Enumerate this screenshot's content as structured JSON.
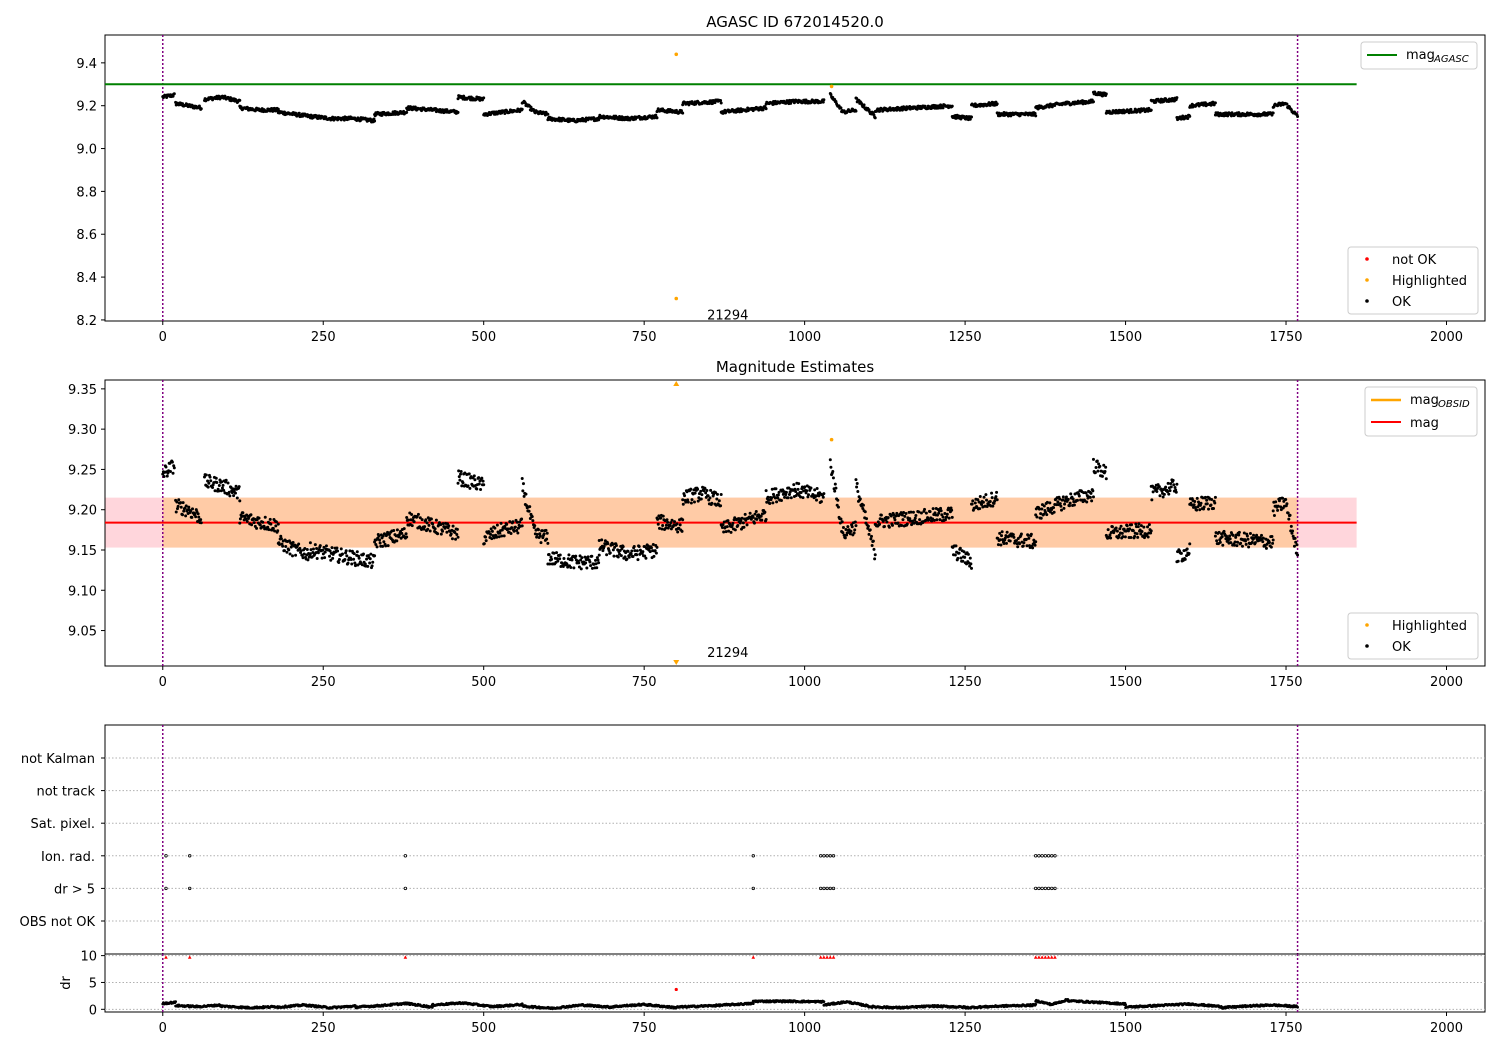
{
  "chart_data": [
    {
      "type": "scatter",
      "title": "AGASC ID 672014520.0",
      "xlabel": "",
      "ylabel": "",
      "xlim": [
        -90,
        2060
      ],
      "ylim": [
        8.195,
        9.53
      ],
      "xticks": [
        0,
        250,
        500,
        750,
        1000,
        1250,
        1500,
        1750,
        2000
      ],
      "yticks": [
        8.2,
        8.4,
        8.6,
        8.8,
        9.0,
        9.2,
        9.4
      ],
      "ytick_labels": [
        "8.2",
        "8.4",
        "8.6",
        "8.8",
        "9.0",
        "9.2",
        "9.4"
      ],
      "vlines": [
        0,
        1768
      ],
      "hline": {
        "name": "mag",
        "subscript": "AGASC",
        "value": 9.3,
        "x_range": [
          -90,
          1860
        ],
        "color": "#008000"
      },
      "legend_top": {
        "placement": "top-right",
        "entries": [
          {
            "label": "mag",
            "subscript": "AGASC",
            "color": "#008000"
          }
        ]
      },
      "legend_bottom": {
        "placement": "lower-right",
        "entries": [
          {
            "label": "not OK",
            "color": "#ff0000"
          },
          {
            "label": "Highlighted",
            "color": "#ffa500"
          },
          {
            "label": "OK",
            "color": "#000000"
          }
        ]
      },
      "annotation": {
        "text": "21294",
        "x": 848,
        "y": 8.22
      },
      "highlighted_points": [
        [
          800,
          9.44
        ],
        [
          1042,
          9.29
        ],
        [
          800,
          8.3
        ]
      ],
      "ok_segments": [
        {
          "x0": 0,
          "x1": 18,
          "values": [
            9.24,
            9.25
          ]
        },
        {
          "x0": 20,
          "x1": 60,
          "values": [
            9.21,
            9.2,
            9.19
          ]
        },
        {
          "x0": 65,
          "x1": 120,
          "values": [
            9.23,
            9.24,
            9.22
          ]
        },
        {
          "x0": 120,
          "x1": 180,
          "values": [
            9.19,
            9.18,
            9.18
          ]
        },
        {
          "x0": 180,
          "x1": 230,
          "values": [
            9.17,
            9.16,
            9.15
          ]
        },
        {
          "x0": 230,
          "x1": 330,
          "values": [
            9.15,
            9.14,
            9.14,
            9.13
          ]
        },
        {
          "x0": 330,
          "x1": 380,
          "values": [
            9.16,
            9.17
          ]
        },
        {
          "x0": 380,
          "x1": 460,
          "values": [
            9.19,
            9.18,
            9.17
          ]
        },
        {
          "x0": 460,
          "x1": 500,
          "values": [
            9.24,
            9.23
          ]
        },
        {
          "x0": 500,
          "x1": 560,
          "values": [
            9.16,
            9.17,
            9.18
          ]
        },
        {
          "x0": 560,
          "x1": 600,
          "values": [
            9.22,
            9.17,
            9.16
          ]
        },
        {
          "x0": 600,
          "x1": 680,
          "values": [
            9.14,
            9.13,
            9.14
          ]
        },
        {
          "x0": 680,
          "x1": 770,
          "values": [
            9.15,
            9.14,
            9.15
          ]
        },
        {
          "x0": 770,
          "x1": 810,
          "values": [
            9.18,
            9.17
          ]
        },
        {
          "x0": 810,
          "x1": 870,
          "values": [
            9.21,
            9.22
          ]
        },
        {
          "x0": 870,
          "x1": 940,
          "values": [
            9.17,
            9.18,
            9.19
          ]
        },
        {
          "x0": 940,
          "x1": 1030,
          "values": [
            9.21,
            9.22,
            9.22
          ]
        },
        {
          "x0": 1040,
          "x1": 1080,
          "values": [
            9.25,
            9.17,
            9.18
          ]
        },
        {
          "x0": 1080,
          "x1": 1110,
          "values": [
            9.23,
            9.15
          ]
        },
        {
          "x0": 1110,
          "x1": 1230,
          "values": [
            9.18,
            9.19,
            9.2
          ]
        },
        {
          "x0": 1230,
          "x1": 1260,
          "values": [
            9.15,
            9.14
          ]
        },
        {
          "x0": 1260,
          "x1": 1300,
          "values": [
            9.2,
            9.21
          ]
        },
        {
          "x0": 1300,
          "x1": 1360,
          "values": [
            9.16,
            9.16
          ]
        },
        {
          "x0": 1360,
          "x1": 1450,
          "values": [
            9.19,
            9.21,
            9.22
          ]
        },
        {
          "x0": 1450,
          "x1": 1470,
          "values": [
            9.26,
            9.25
          ]
        },
        {
          "x0": 1470,
          "x1": 1540,
          "values": [
            9.17,
            9.18
          ]
        },
        {
          "x0": 1540,
          "x1": 1580,
          "values": [
            9.22,
            9.23
          ]
        },
        {
          "x0": 1580,
          "x1": 1600,
          "values": [
            9.14,
            9.15
          ]
        },
        {
          "x0": 1600,
          "x1": 1640,
          "values": [
            9.2,
            9.21
          ]
        },
        {
          "x0": 1640,
          "x1": 1730,
          "values": [
            9.16,
            9.16
          ]
        },
        {
          "x0": 1730,
          "x1": 1768,
          "values": [
            9.2,
            9.21,
            9.15
          ]
        }
      ]
    },
    {
      "type": "scatter",
      "title": "Magnitude Estimates",
      "xlabel": "",
      "ylabel": "",
      "xlim": [
        -90,
        2060
      ],
      "ylim": [
        9.006,
        9.361
      ],
      "xticks": [
        0,
        250,
        500,
        750,
        1000,
        1250,
        1500,
        1750,
        2000
      ],
      "yticks": [
        9.05,
        9.1,
        9.15,
        9.2,
        9.25,
        9.3,
        9.35
      ],
      "ytick_labels": [
        "9.05",
        "9.10",
        "9.15",
        "9.20",
        "9.25",
        "9.30",
        "9.35"
      ],
      "vlines": [
        0,
        1768
      ],
      "mag_line": {
        "value": 9.184,
        "x_range": [
          -90,
          1860
        ],
        "color": "#ff0000"
      },
      "band_outer": {
        "y0": 9.153,
        "y1": 9.215,
        "x_range": [
          -90,
          1860
        ],
        "color": "#ffd6dc"
      },
      "band_inner": {
        "y0": 9.153,
        "y1": 9.215,
        "x_range": [
          0,
          1768
        ],
        "color": "#ffcba6"
      },
      "legend_top": {
        "placement": "top-right",
        "entries": [
          {
            "label": "mag",
            "subscript": "OBSID",
            "color": "#ffa500"
          },
          {
            "label": "mag",
            "color": "#ff0000"
          }
        ]
      },
      "legend_bottom": {
        "placement": "lower-right",
        "entries": [
          {
            "label": "Highlighted",
            "color": "#ffa500"
          },
          {
            "label": "OK",
            "color": "#000000"
          }
        ]
      },
      "annotation": {
        "text": "21294",
        "x": 848,
        "y": 9.012
      },
      "highlighted_points": [
        [
          1042,
          9.287
        ]
      ],
      "outlier_markers": [
        {
          "x": 800,
          "direction": "up"
        },
        {
          "x": 800,
          "direction": "down"
        }
      ],
      "ok_segments": [
        {
          "x0": 0,
          "x1": 18,
          "values": [
            9.245,
            9.255
          ]
        },
        {
          "x0": 20,
          "x1": 60,
          "values": [
            9.205,
            9.2,
            9.19
          ]
        },
        {
          "x0": 65,
          "x1": 120,
          "values": [
            9.235,
            9.23,
            9.22
          ]
        },
        {
          "x0": 120,
          "x1": 180,
          "values": [
            9.19,
            9.185,
            9.18
          ]
        },
        {
          "x0": 180,
          "x1": 230,
          "values": [
            9.16,
            9.15,
            9.145
          ]
        },
        {
          "x0": 230,
          "x1": 330,
          "values": [
            9.15,
            9.145,
            9.14,
            9.135
          ]
        },
        {
          "x0": 330,
          "x1": 380,
          "values": [
            9.16,
            9.17
          ]
        },
        {
          "x0": 380,
          "x1": 460,
          "values": [
            9.19,
            9.18,
            9.17
          ]
        },
        {
          "x0": 460,
          "x1": 500,
          "values": [
            9.24,
            9.23
          ]
        },
        {
          "x0": 500,
          "x1": 560,
          "values": [
            9.165,
            9.175,
            9.18
          ]
        },
        {
          "x0": 560,
          "x1": 600,
          "values": [
            9.23,
            9.17,
            9.165
          ]
        },
        {
          "x0": 600,
          "x1": 680,
          "values": [
            9.14,
            9.135,
            9.135
          ]
        },
        {
          "x0": 680,
          "x1": 770,
          "values": [
            9.155,
            9.145,
            9.15
          ]
        },
        {
          "x0": 770,
          "x1": 810,
          "values": [
            9.185,
            9.18
          ]
        },
        {
          "x0": 810,
          "x1": 870,
          "values": [
            9.215,
            9.22,
            9.21
          ]
        },
        {
          "x0": 870,
          "x1": 940,
          "values": [
            9.175,
            9.185,
            9.195
          ]
        },
        {
          "x0": 940,
          "x1": 1030,
          "values": [
            9.215,
            9.225,
            9.215
          ]
        },
        {
          "x0": 1040,
          "x1": 1080,
          "values": [
            9.26,
            9.17,
            9.18
          ]
        },
        {
          "x0": 1080,
          "x1": 1110,
          "values": [
            9.23,
            9.145
          ]
        },
        {
          "x0": 1110,
          "x1": 1230,
          "values": [
            9.185,
            9.19,
            9.195
          ]
        },
        {
          "x0": 1230,
          "x1": 1260,
          "values": [
            9.15,
            9.135
          ]
        },
        {
          "x0": 1260,
          "x1": 1300,
          "values": [
            9.205,
            9.215
          ]
        },
        {
          "x0": 1300,
          "x1": 1360,
          "values": [
            9.165,
            9.16
          ]
        },
        {
          "x0": 1360,
          "x1": 1450,
          "values": [
            9.195,
            9.21,
            9.22
          ]
        },
        {
          "x0": 1450,
          "x1": 1470,
          "values": [
            9.255,
            9.245
          ]
        },
        {
          "x0": 1470,
          "x1": 1540,
          "values": [
            9.17,
            9.175
          ]
        },
        {
          "x0": 1540,
          "x1": 1580,
          "values": [
            9.22,
            9.23
          ]
        },
        {
          "x0": 1580,
          "x1": 1600,
          "values": [
            9.14,
            9.15
          ]
        },
        {
          "x0": 1600,
          "x1": 1640,
          "values": [
            9.205,
            9.21
          ]
        },
        {
          "x0": 1640,
          "x1": 1730,
          "values": [
            9.165,
            9.16
          ]
        },
        {
          "x0": 1730,
          "x1": 1768,
          "values": [
            9.2,
            9.21,
            9.145
          ]
        }
      ]
    },
    {
      "type": "scatter",
      "title": "",
      "xlabel": "",
      "ylabel": "",
      "xlim": [
        -90,
        2060
      ],
      "categories": [
        "OBS not OK",
        "dr > 5",
        "Ion. rad.",
        "Sat. pixel.",
        "not track",
        "not Kalman"
      ],
      "grid": true,
      "vlines": [
        0,
        1768
      ],
      "flag_rows": [
        {
          "row": "Ion. rad.",
          "x": [
            5,
            42,
            378,
            920,
            1025,
            1030,
            1035,
            1040,
            1045,
            1360,
            1365,
            1370,
            1375,
            1380,
            1385,
            1390
          ]
        },
        {
          "row": "dr > 5",
          "x": [
            5,
            42,
            378,
            920,
            1025,
            1030,
            1035,
            1040,
            1045,
            1360,
            1365,
            1370,
            1375,
            1380,
            1385,
            1390
          ]
        }
      ]
    },
    {
      "type": "scatter",
      "title": "",
      "xlabel": "",
      "ylabel": "dr",
      "xlim": [
        -90,
        2060
      ],
      "ylim": [
        -0.5,
        10.3
      ],
      "xticks": [
        0,
        250,
        500,
        750,
        1000,
        1250,
        1500,
        1750,
        2000
      ],
      "yticks": [
        0,
        5,
        10
      ],
      "ytick_labels": [
        "0",
        "5",
        "10"
      ],
      "vlines": [
        0,
        1768
      ],
      "not_ok_x": [
        5,
        42,
        378,
        920,
        1025,
        1030,
        1035,
        1040,
        1045,
        1360,
        1365,
        1370,
        1375,
        1380,
        1385,
        1390
      ],
      "not_ok_value": 9.7,
      "highlighted_points": [
        [
          800,
          3.7
        ]
      ],
      "ok_segments": [
        {
          "x0": 0,
          "x1": 20,
          "values": [
            1.1,
            1.3
          ]
        },
        {
          "x0": 20,
          "x1": 90,
          "values": [
            0.7,
            0.5,
            0.8
          ]
        },
        {
          "x0": 90,
          "x1": 180,
          "values": [
            0.6,
            0.3,
            0.5
          ]
        },
        {
          "x0": 180,
          "x1": 300,
          "values": [
            0.4,
            0.8,
            0.3,
            0.6
          ]
        },
        {
          "x0": 300,
          "x1": 420,
          "values": [
            0.4,
            0.7,
            1.1,
            0.4
          ]
        },
        {
          "x0": 420,
          "x1": 560,
          "values": [
            0.8,
            1.2,
            0.5,
            0.9
          ]
        },
        {
          "x0": 560,
          "x1": 700,
          "values": [
            0.6,
            0.2,
            0.8,
            0.4
          ]
        },
        {
          "x0": 700,
          "x1": 800,
          "values": [
            0.5,
            0.9,
            0.3
          ]
        },
        {
          "x0": 800,
          "x1": 920,
          "values": [
            0.4,
            0.7,
            1.1
          ]
        },
        {
          "x0": 920,
          "x1": 1030,
          "values": [
            1.5,
            1.5,
            1.4
          ]
        },
        {
          "x0": 1030,
          "x1": 1100,
          "values": [
            0.8,
            1.4,
            0.6
          ]
        },
        {
          "x0": 1100,
          "x1": 1250,
          "values": [
            0.5,
            0.3,
            0.6,
            0.4
          ]
        },
        {
          "x0": 1250,
          "x1": 1360,
          "values": [
            0.3,
            0.6,
            0.8
          ]
        },
        {
          "x0": 1360,
          "x1": 1410,
          "values": [
            1.6,
            0.9,
            1.8
          ]
        },
        {
          "x0": 1410,
          "x1": 1500,
          "values": [
            1.6,
            1.3,
            1.0
          ]
        },
        {
          "x0": 1500,
          "x1": 1650,
          "values": [
            0.4,
            0.7,
            1.0,
            0.5
          ]
        },
        {
          "x0": 1650,
          "x1": 1768,
          "values": [
            0.3,
            0.6,
            0.8,
            0.5
          ]
        }
      ]
    }
  ]
}
